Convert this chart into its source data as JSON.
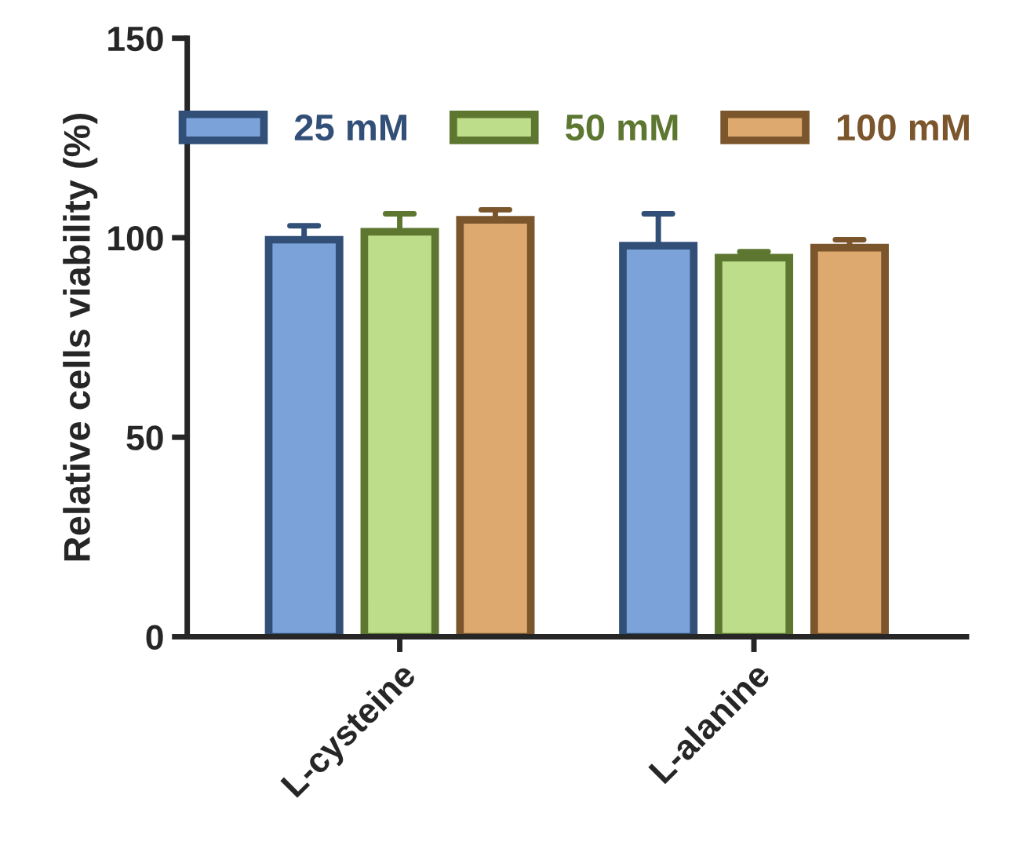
{
  "chart_data": {
    "type": "bar",
    "ylabel": "Relative cells viability (%)",
    "categories": [
      "L-cysteine",
      "L-alanine"
    ],
    "series": [
      {
        "name": "25 mM",
        "color": "#7ba3d9",
        "values": [
          99.5,
          98
        ],
        "errors": [
          [
            99.5,
            103
          ],
          [
            98,
            106
          ]
        ]
      },
      {
        "name": "50 mM",
        "color": "#bedd8a",
        "values": [
          101.5,
          95
        ],
        "errors": [
          [
            101.5,
            106
          ],
          [
            95,
            96.5
          ]
        ]
      },
      {
        "name": "100 mM",
        "color": "#dda96f",
        "values": [
          104.5,
          97.5
        ],
        "errors": [
          [
            104.5,
            107
          ],
          [
            97.5,
            99.5
          ]
        ]
      }
    ],
    "ylim": [
      0,
      150
    ],
    "yticks": [
      0,
      50,
      100,
      150
    ],
    "grid": false,
    "legend": "top"
  }
}
